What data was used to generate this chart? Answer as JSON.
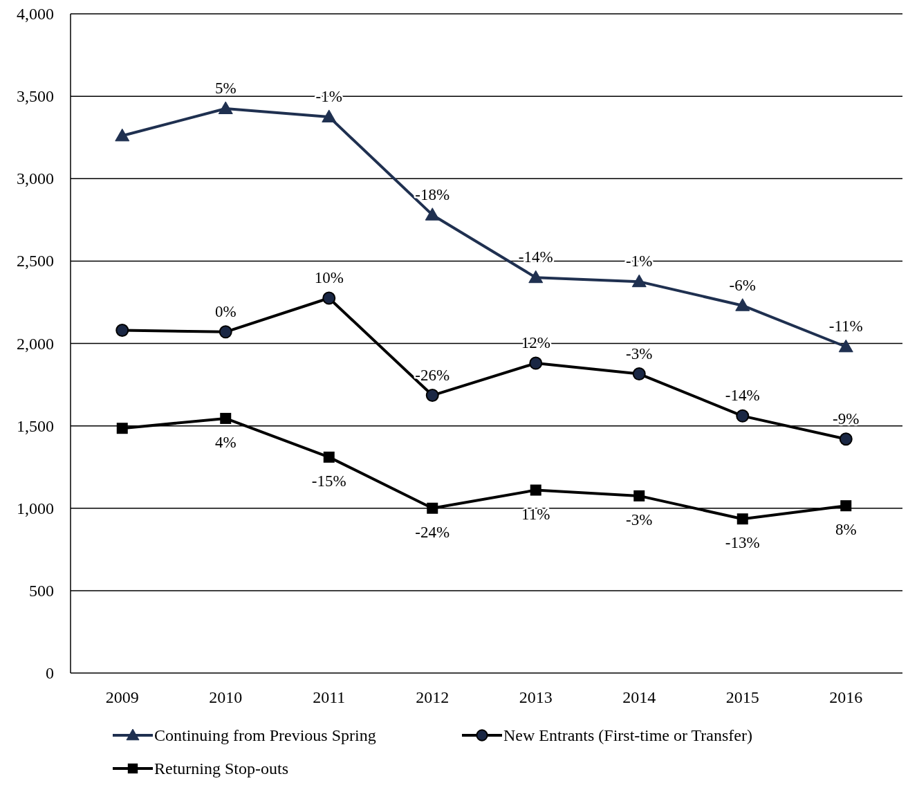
{
  "chart_data": {
    "type": "line",
    "categories": [
      "2009",
      "2010",
      "2011",
      "2012",
      "2013",
      "2014",
      "2015",
      "2016"
    ],
    "series": [
      {
        "name": "Continuing from Previous Spring",
        "color": "#1f3050",
        "marker": "triangle",
        "values": [
          3260,
          3425,
          3375,
          2780,
          2400,
          2375,
          2230,
          1980
        ]
      },
      {
        "name": "New Entrants (First-time or Transfer)",
        "color": "#000000",
        "marker": "circle",
        "values": [
          2080,
          2070,
          2275,
          1685,
          1880,
          1815,
          1560,
          1420
        ]
      },
      {
        "name": "Returning Stop-outs",
        "color": "#000000",
        "marker": "square",
        "values": [
          1485,
          1545,
          1310,
          1000,
          1110,
          1075,
          935,
          1015
        ]
      }
    ],
    "annotations": [
      {
        "text": "5%",
        "x": "2010",
        "y": 3425
      },
      {
        "text": "-1%",
        "x": "2011",
        "y": 3375
      },
      {
        "text": "-18%",
        "x": "2012",
        "y": 2780
      },
      {
        "text": "-14%",
        "x": "2013",
        "y": 2400
      },
      {
        "text": "-1%",
        "x": "2014",
        "y": 2375
      },
      {
        "text": "-6%",
        "x": "2015",
        "y": 2230
      },
      {
        "text": "-11%",
        "x": "2016",
        "y": 1980
      },
      {
        "text": "0%",
        "x": "2010",
        "y": 2070
      },
      {
        "text": "10%",
        "x": "2011",
        "y": 2275
      },
      {
        "text": "-26%",
        "x": "2012",
        "y": 1685
      },
      {
        "text": "12%",
        "x": "2013",
        "y": 1880
      },
      {
        "text": "-3%",
        "x": "2014",
        "y": 1815
      },
      {
        "text": "-14%",
        "x": "2015",
        "y": 1560
      },
      {
        "text": "-9%",
        "x": "2016",
        "y": 1420
      },
      {
        "text": "4%",
        "x": "2010",
        "y": 1545
      },
      {
        "text": "-15%",
        "x": "2011",
        "y": 1310
      },
      {
        "text": "-24%",
        "x": "2012",
        "y": 1000
      },
      {
        "text": "11%",
        "x": "2013",
        "y": 1110
      },
      {
        "text": "-3%",
        "x": "2014",
        "y": 1075
      },
      {
        "text": "-13%",
        "x": "2015",
        "y": 935
      },
      {
        "text": "8%",
        "x": "2016",
        "y": 1015
      }
    ],
    "ylim": [
      0,
      4000
    ],
    "yticks": [
      {
        "value": 0,
        "label": "0"
      },
      {
        "value": 500,
        "label": "500"
      },
      {
        "value": 1000,
        "label": "1,000"
      },
      {
        "value": 1500,
        "label": "1,500"
      },
      {
        "value": 2000,
        "label": "2,000"
      },
      {
        "value": 2500,
        "label": "2,500"
      },
      {
        "value": 3000,
        "label": "3,000"
      },
      {
        "value": 3500,
        "label": "3,500"
      },
      {
        "value": 4000,
        "label": "4,000"
      }
    ],
    "grid": "y",
    "legend": "bottom",
    "line_style": "solid"
  }
}
